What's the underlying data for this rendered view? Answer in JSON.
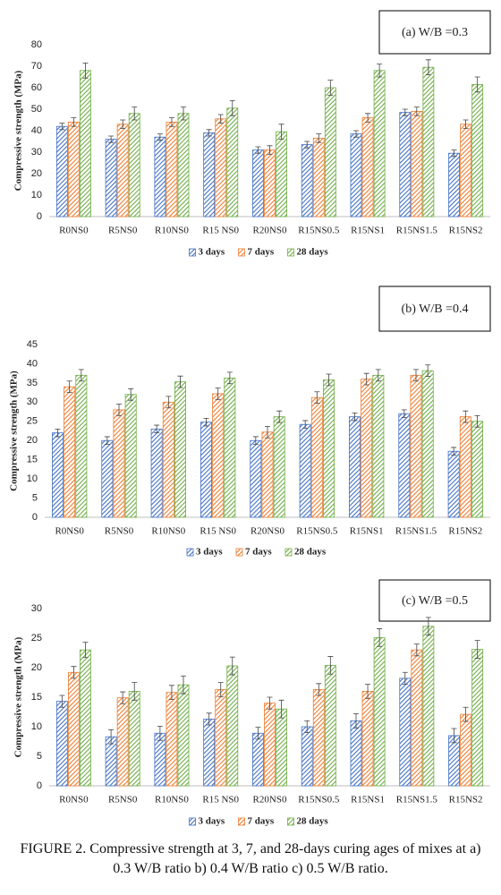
{
  "chart_data": [
    {
      "type": "bar",
      "title": "(a)  W/B =0.3",
      "y_label": "Compressive strength (MPa)",
      "categories": [
        "R0NS0",
        "R5NS0",
        "R10NS0",
        "R15 NS0",
        "R20NS0",
        "R15NS0.5",
        "R15NS1",
        "R15NS1.5",
        "R15NS2"
      ],
      "series": [
        {
          "name": "3 days",
          "color": "#4472c4",
          "values": [
            42,
            36,
            37,
            39,
            31,
            33.5,
            38.5,
            48.5,
            29.5
          ],
          "errors": [
            1.5,
            1.5,
            1.5,
            1.5,
            1.5,
            1.5,
            1.5,
            1.5,
            1.5
          ]
        },
        {
          "name": "7 days",
          "color": "#ed7d31",
          "values": [
            44,
            43,
            44,
            45.5,
            31,
            36.5,
            46,
            49,
            43
          ],
          "errors": [
            2,
            2,
            2,
            2,
            2,
            2,
            2,
            2,
            2
          ]
        },
        {
          "name": "28 days",
          "color": "#70ad47",
          "values": [
            68,
            48,
            48,
            50.5,
            39.5,
            60,
            68,
            69.5,
            61.5
          ],
          "errors": [
            3.5,
            3,
            3,
            3.5,
            3.5,
            3.5,
            3,
            3.5,
            3.5
          ]
        }
      ],
      "ylim": [
        0,
        80
      ],
      "yticks": [
        0,
        10,
        20,
        30,
        40,
        50,
        60,
        70,
        80
      ],
      "grid": false
    },
    {
      "type": "bar",
      "title": "(b)  W/B =0.4",
      "y_label": "Compressive strength (MPa)",
      "categories": [
        "R0NS0",
        "R5NS0",
        "R10NS0",
        "R15 NS0",
        "R20NS0",
        "R15NS0.5",
        "R15NS1",
        "R15NS1.5",
        "R15NS2"
      ],
      "series": [
        {
          "name": "3 days",
          "color": "#4472c4",
          "values": [
            22,
            20,
            23,
            24.8,
            20,
            24.2,
            26.2,
            27,
            17.2
          ],
          "errors": [
            1,
            1,
            1,
            1,
            1,
            1,
            1,
            1,
            1
          ]
        },
        {
          "name": "7 days",
          "color": "#ed7d31",
          "values": [
            34,
            28,
            30,
            32.2,
            22.2,
            31.2,
            36,
            37,
            26.2
          ],
          "errors": [
            1.5,
            1.5,
            1.5,
            1.5,
            1.5,
            1.5,
            1.5,
            1.5,
            1.5
          ]
        },
        {
          "name": "28 days",
          "color": "#70ad47",
          "values": [
            37,
            32,
            35.3,
            36.3,
            26.2,
            35.8,
            37,
            38.2,
            25
          ],
          "errors": [
            1.5,
            1.5,
            1.5,
            1.5,
            1.5,
            1.5,
            1.5,
            1.5,
            1.5
          ]
        }
      ],
      "ylim": [
        0,
        45
      ],
      "yticks": [
        0,
        5,
        10,
        15,
        20,
        25,
        30,
        35,
        40,
        45
      ],
      "grid": false
    },
    {
      "type": "bar",
      "title": "(c) W/B =0.5",
      "y_label": "Compressive strength (MPa)",
      "categories": [
        "R0NS0",
        "R5NS0",
        "R10NS0",
        "R15 NS0",
        "R20NS0",
        "R15NS0.5",
        "R15NS1",
        "R15NS1.5",
        "R15NS2"
      ],
      "series": [
        {
          "name": "3 days",
          "color": "#4472c4",
          "values": [
            14.3,
            8.3,
            8.9,
            11.3,
            8.9,
            10,
            11,
            18.2,
            8.5
          ],
          "errors": [
            1,
            1.2,
            1.2,
            1,
            1,
            1,
            1.2,
            1,
            1.2
          ]
        },
        {
          "name": "7 days",
          "color": "#ed7d31",
          "values": [
            19.2,
            14.9,
            15.8,
            16.3,
            14,
            16.3,
            16,
            23,
            12.1
          ],
          "errors": [
            1,
            1,
            1.2,
            1.2,
            1,
            1,
            1.2,
            1,
            1.2
          ]
        },
        {
          "name": "28 days",
          "color": "#70ad47",
          "values": [
            23,
            16,
            17.1,
            20.3,
            13,
            20.4,
            25.1,
            27,
            23.1
          ],
          "errors": [
            1.3,
            1.5,
            1.5,
            1.5,
            1.5,
            1.5,
            1.5,
            1.5,
            1.5
          ]
        }
      ],
      "ylim": [
        0,
        30
      ],
      "yticks": [
        0,
        5,
        10,
        15,
        20,
        25,
        30
      ],
      "grid": false
    }
  ],
  "caption": "FIGURE 2. Compressive strength at 3, 7, and 28-days curing ages of mixes at a) 0.3 W/B ratio b) 0.4 W/B ratio c) 0.5 W/B ratio."
}
